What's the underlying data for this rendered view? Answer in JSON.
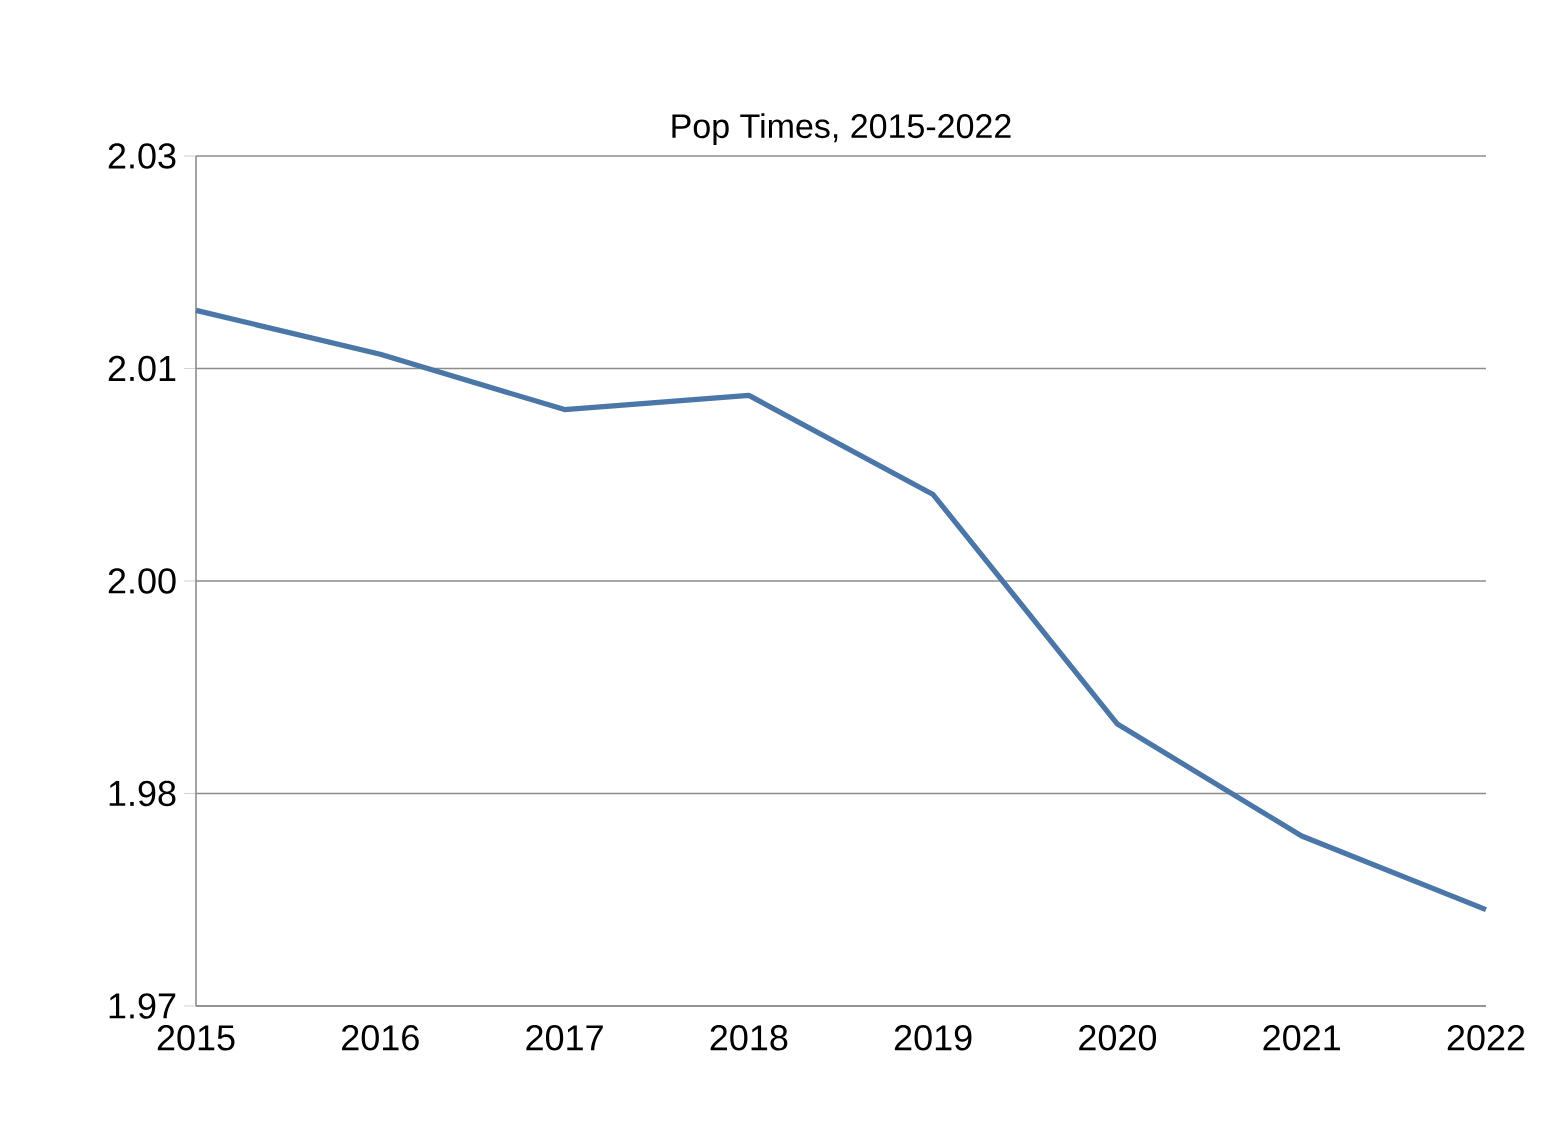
{
  "chart_data": {
    "type": "line",
    "title": "Pop Times, 2015-2022",
    "x": [
      2015,
      2016,
      2017,
      2018,
      2019,
      2020,
      2021,
      2022
    ],
    "series": [
      {
        "color": "#4a76a8",
        "values": [
          2.0141,
          2.011,
          2.0071,
          2.0081,
          2.0011,
          1.9849,
          1.977,
          1.9718
        ]
      }
    ],
    "xlim": [
      2015,
      2022
    ],
    "xticks": [
      2015,
      2016,
      2017,
      2018,
      2019,
      2020,
      2021,
      2022
    ],
    "ylim": [
      1.965,
      2.025
    ],
    "yticks": [
      {
        "value": 1.965,
        "label": "1.97"
      },
      {
        "value": 1.98,
        "label": "1.98"
      },
      {
        "value": 1.995,
        "label": "2.00"
      },
      {
        "value": 2.01,
        "label": "2.01"
      },
      {
        "value": 2.025,
        "label": "2.03"
      }
    ],
    "grid": "y",
    "marker": "none",
    "line_style": "solid"
  }
}
